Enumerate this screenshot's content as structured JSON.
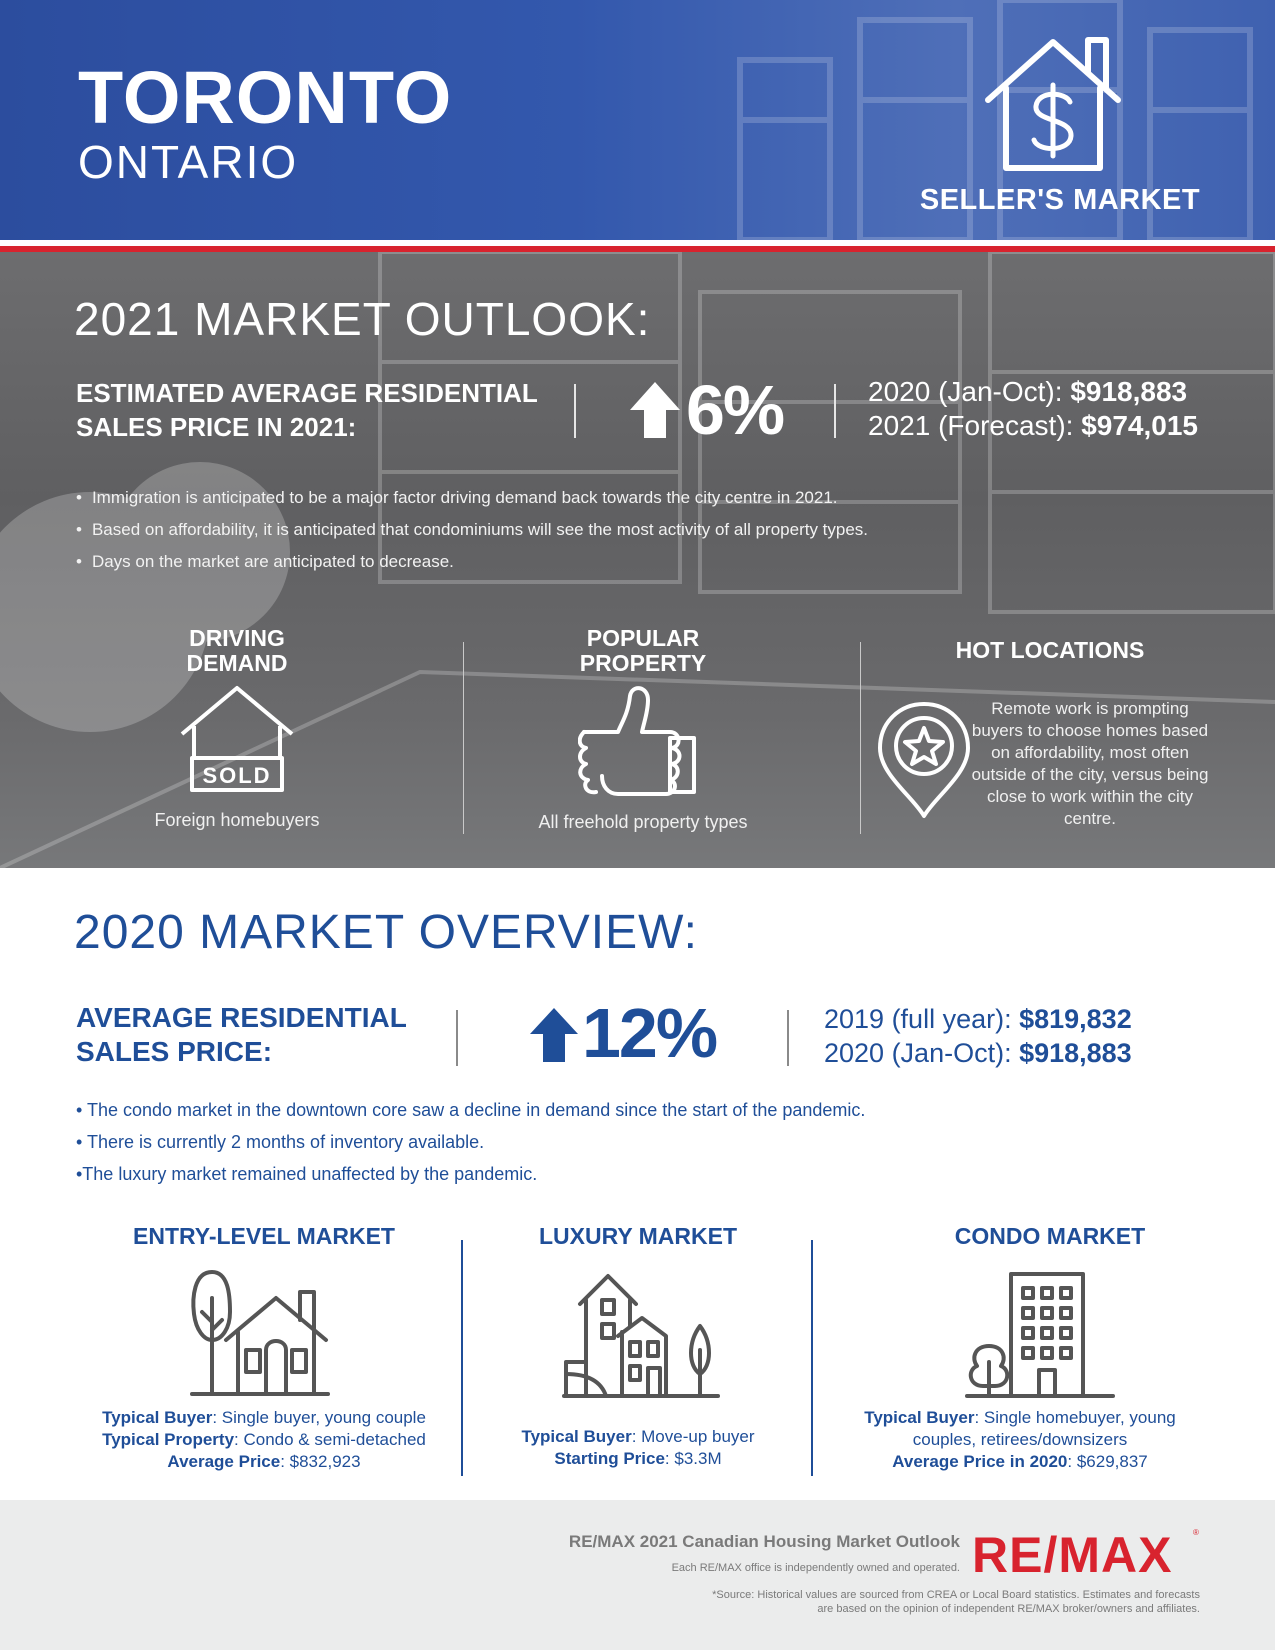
{
  "header": {
    "city": "TORONTO",
    "province": "ONTARIO",
    "market_type": "SELLER'S MARKET",
    "market_icon": "house-dollar-icon"
  },
  "outlook": {
    "title": "2021 MARKET OUTLOOK:",
    "price_label_line1": "ESTIMATED AVERAGE RESIDENTIAL",
    "price_label_line2": "SALES PRICE IN 2021:",
    "change_percent": "6%",
    "trend": "up",
    "row1_label": "2020 (Jan-Oct): ",
    "row1_value": "$918,883",
    "row2_label": "2021 (Forecast): ",
    "row2_value": "$974,015",
    "bullets": [
      "Immigration is anticipated to be a major factor driving demand back towards the city centre in 2021.",
      "Based on affordability, it is anticipated that condominiums will see the most activity of all property types.",
      "Days on the market are anticipated to decrease."
    ],
    "columns": [
      {
        "heading_line1": "DRIVING",
        "heading_line2": "DEMAND",
        "icon": "sold-house-icon",
        "icon_text": "SOLD",
        "caption": "Foreign homebuyers"
      },
      {
        "heading_line1": "POPULAR",
        "heading_line2": "PROPERTY",
        "icon": "thumbs-up-icon",
        "caption": "All freehold property types"
      },
      {
        "heading_line1": "HOT LOCATIONS",
        "icon": "location-star-icon",
        "caption": "Remote work is prompting buyers to choose homes based on affordability, most often outside of the city, versus being close to work within the city centre."
      }
    ]
  },
  "overview": {
    "title": "2020 MARKET OVERVIEW:",
    "price_label_line1": "AVERAGE RESIDENTIAL",
    "price_label_line2": "SALES PRICE:",
    "change_percent": "12%",
    "trend": "up",
    "row1_label": "2019 (full year): ",
    "row1_value": "$819,832",
    "row2_label": "2020 (Jan-Oct): ",
    "row2_value": "$918,883",
    "bullets": [
      "• The condo market in the downtown core saw a decline in demand since the start of the pandemic.",
      "• There is currently 2 months of inventory available.",
      "•The luxury market remained unaffected by the pandemic."
    ],
    "markets": [
      {
        "heading": "ENTRY-LEVEL MARKET",
        "icon": "house-tree-icon",
        "lines": [
          {
            "label": "Typical Buyer",
            "value": ": Single buyer, young couple"
          },
          {
            "label": "Typical Property",
            "value": ": Condo & semi-detached"
          },
          {
            "label": "Average Price",
            "value": ": $832,923"
          }
        ]
      },
      {
        "heading": "LUXURY MARKET",
        "icon": "luxury-house-icon",
        "lines": [
          {
            "label": "Typical Buyer",
            "value": ": Move-up buyer"
          },
          {
            "label": "Starting Price",
            "value": ": $3.3M"
          }
        ]
      },
      {
        "heading": "CONDO MARKET",
        "icon": "condo-building-icon",
        "lines": [
          {
            "label": "Typical Buyer",
            "value": ": Single homebuyer, young"
          },
          {
            "label": "",
            "value": "couples, retirees/downsizers"
          },
          {
            "label": "Average Price in 2020",
            "value": ": $629,837"
          }
        ]
      }
    ]
  },
  "footer": {
    "report_title": "RE/MAX 2021 Canadian Housing Market Outlook",
    "independent_note": "Each RE/MAX office is independently owned and operated.",
    "source_line1": "*Source: Historical values are sourced from CREA or Local Board statistics. Estimates and forecasts",
    "source_line2": "are based on the opinion of independent RE/MAX broker/owners and affiliates.",
    "logo_text": "RE/MAX",
    "logo_mark": "®",
    "brand_red": "#d8232e",
    "brand_blue": "#1f4e98"
  }
}
